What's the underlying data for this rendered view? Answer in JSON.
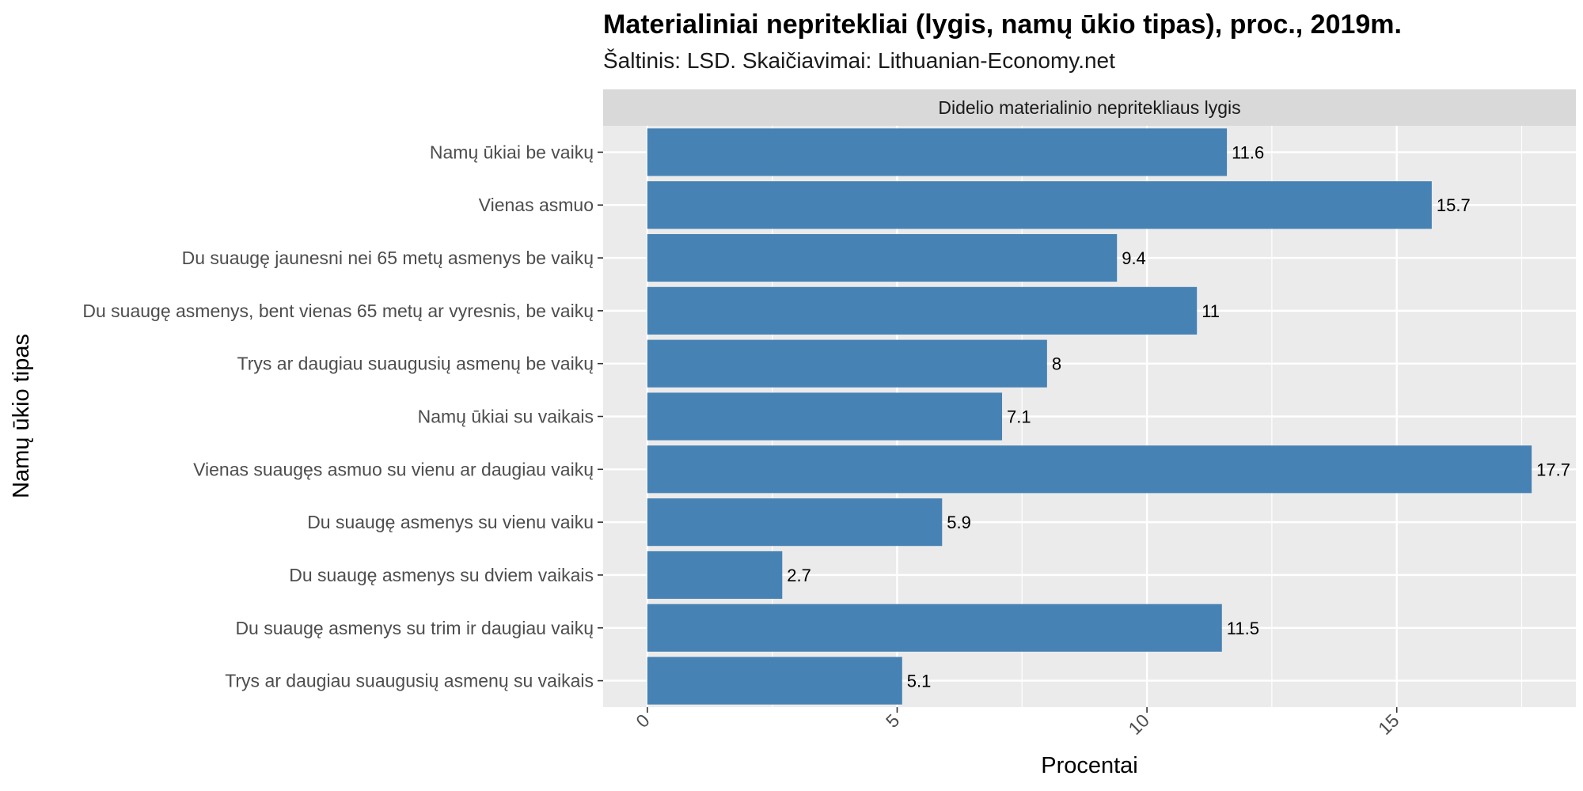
{
  "chart_data": {
    "type": "bar",
    "orientation": "horizontal",
    "title": "Materialiniai nepritekliai (lygis, namų ūkio tipas), proc., 2019m.",
    "subtitle": "Šaltinis: LSD. Skaičiavimai: Lithuanian-Economy.net",
    "facet_label": "Didelio materialinio nepritekliaus lygis",
    "xlabel": "Procentai",
    "ylabel": "Namų ūkio tipas",
    "categories": [
      "Namų ūkiai be vaikų",
      "Vienas asmuo",
      "Du suaugę jaunesni nei 65 metų asmenys be vaikų",
      "Du suaugę asmenys, bent vienas 65 metų ar vyresnis, be vaikų",
      "Trys ar daugiau suaugusių asmenų be vaikų",
      "Namų ūkiai su vaikais",
      "Vienas suaugęs asmuo su vienu ar daugiau vaikų",
      "Du suaugę asmenys su vienu vaiku",
      "Du suaugę asmenys su dviem vaikais",
      "Du suaugę asmenys su trim ir daugiau vaikų",
      "Trys ar daugiau suaugusių asmenų su vaikais"
    ],
    "values": [
      11.6,
      15.7,
      9.4,
      11,
      8,
      7.1,
      17.7,
      5.9,
      2.7,
      11.5,
      5.1
    ],
    "value_labels": [
      "11.6",
      "15.7",
      "9.4",
      "11",
      "8",
      "7.1",
      "17.7",
      "5.9",
      "2.7",
      "11.5",
      "5.1"
    ],
    "xticks": [
      0,
      5,
      10,
      15
    ],
    "xtick_labels": [
      "0",
      "5",
      "10",
      "15"
    ],
    "xlim": [
      -0.885,
      18.585
    ],
    "bar_color": "#4682B4",
    "panel_color": "#EBEBEB",
    "strip_color": "#D9D9D9",
    "grid": true
  }
}
